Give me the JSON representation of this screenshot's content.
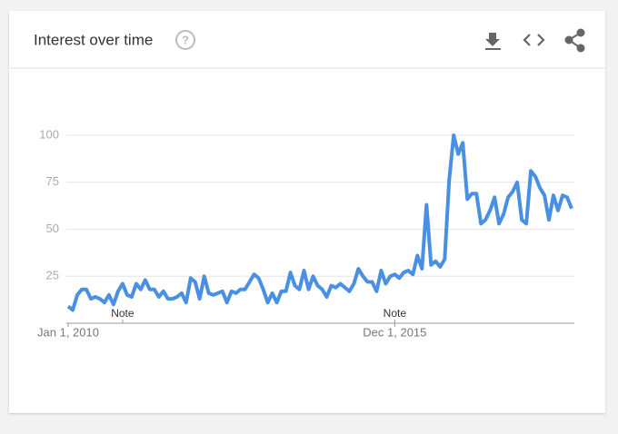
{
  "chart_data": {
    "type": "line",
    "title": "Interest over time",
    "categories": [
      "Jan 1, 2010",
      null,
      null,
      null,
      null,
      null,
      null,
      null,
      null,
      null,
      null,
      null,
      null,
      null,
      null,
      null,
      null,
      null,
      null,
      null,
      null,
      null,
      null,
      null,
      null,
      null,
      null,
      null,
      null,
      null,
      null,
      null,
      null,
      null,
      null,
      null,
      null,
      null,
      null,
      null,
      null,
      null,
      null,
      null,
      null,
      null,
      null,
      null,
      null,
      null,
      null,
      null,
      null,
      null,
      null,
      null,
      null,
      null,
      null,
      null,
      null,
      null,
      null,
      null,
      null,
      null,
      null,
      null,
      null,
      null,
      null,
      null,
      "Dec 1, 2015",
      null,
      null,
      null,
      null,
      null,
      null,
      null,
      null,
      null,
      null,
      null,
      null,
      null,
      null,
      null,
      null,
      null,
      null,
      null,
      null,
      null,
      null,
      null,
      null,
      null,
      null,
      null,
      null,
      null,
      null,
      null,
      null,
      null,
      null,
      null,
      null,
      null,
      null,
      null
    ],
    "series": [
      {
        "color": "#4a90e2",
        "values": [
          9,
          7,
          15,
          18,
          18,
          13,
          14,
          13,
          11,
          15,
          10,
          17,
          21,
          15,
          14,
          21,
          18,
          23,
          18,
          18,
          14,
          17,
          13,
          13,
          14,
          16,
          11,
          24,
          22,
          13,
          25,
          16,
          15,
          16,
          17,
          11,
          17,
          16,
          18,
          18,
          22,
          26,
          24,
          18,
          11,
          16,
          11,
          17,
          17,
          27,
          20,
          18,
          28,
          18,
          25,
          20,
          18,
          14,
          20,
          19,
          21,
          19,
          17,
          21,
          29,
          25,
          22,
          22,
          17,
          28,
          21,
          25,
          26,
          24,
          27,
          28,
          26,
          36,
          29,
          63,
          31,
          33,
          30,
          34,
          76,
          100,
          90,
          96,
          66,
          69,
          69,
          53,
          55,
          60,
          67,
          53,
          58,
          67,
          70,
          75,
          55,
          53,
          81,
          78,
          72,
          68,
          55,
          68,
          60,
          68,
          67,
          61
        ]
      }
    ],
    "annotations": [
      {
        "text": "Note",
        "category_index": 12
      },
      {
        "text": "Note",
        "category_index": 72
      }
    ],
    "ylim": [
      0,
      100
    ],
    "yticks": [
      25,
      50,
      75,
      100
    ],
    "grid": true
  }
}
